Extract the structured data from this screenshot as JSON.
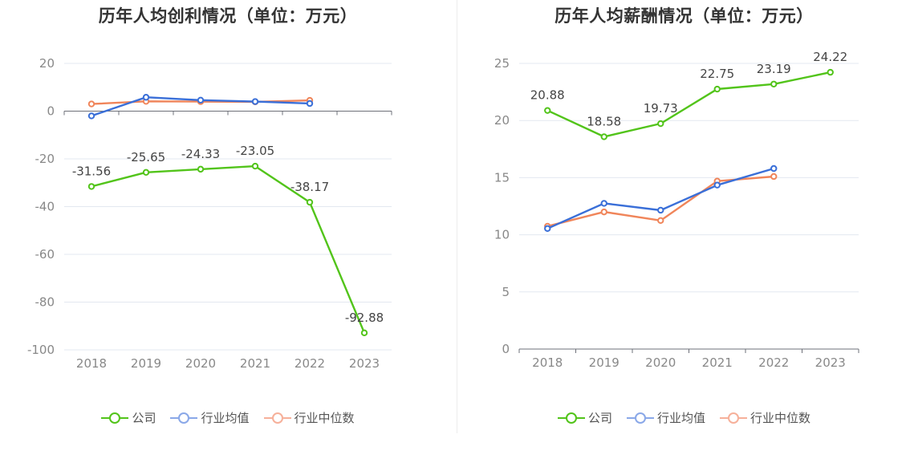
{
  "chart_data": [
    {
      "type": "line",
      "title": "历年人均创利情况（单位：万元）",
      "categories": [
        "2018",
        "2019",
        "2020",
        "2021",
        "2022",
        "2023"
      ],
      "ylim": [
        -100,
        20
      ],
      "yticks": [
        20,
        0,
        -20,
        -40,
        -60,
        -80,
        -100
      ],
      "grid": true,
      "legend_position": "bottom",
      "series": [
        {
          "name": "公司",
          "color": "#52c41a",
          "values": [
            -31.56,
            -25.65,
            -24.33,
            -23.05,
            -38.17,
            -92.88
          ],
          "show_labels": true
        },
        {
          "name": "行业均值",
          "color": "#3a6fd8",
          "values": [
            -2.0,
            5.8,
            4.6,
            4.0,
            3.2,
            null
          ],
          "show_labels": false
        },
        {
          "name": "行业中位数",
          "color": "#f0855a",
          "values": [
            3.0,
            4.1,
            4.0,
            3.9,
            4.5,
            null
          ],
          "show_labels": false
        }
      ],
      "labels": [
        "-31.56",
        "-25.65",
        "-24.33",
        "-23.05",
        "-38.17",
        "-92.88"
      ]
    },
    {
      "type": "line",
      "title": "历年人均薪酬情况（单位：万元）",
      "categories": [
        "2018",
        "2019",
        "2020",
        "2021",
        "2022",
        "2023"
      ],
      "ylim": [
        0,
        25
      ],
      "yticks": [
        25,
        20,
        15,
        10,
        5,
        0
      ],
      "grid": true,
      "legend_position": "bottom",
      "series": [
        {
          "name": "公司",
          "color": "#52c41a",
          "values": [
            20.88,
            18.58,
            19.73,
            22.75,
            23.19,
            24.22
          ],
          "show_labels": true
        },
        {
          "name": "行业均值",
          "color": "#3a6fd8",
          "values": [
            10.55,
            12.75,
            12.15,
            14.35,
            15.8,
            null
          ],
          "show_labels": false
        },
        {
          "name": "行业中位数",
          "color": "#f0855a",
          "values": [
            10.75,
            12.0,
            11.25,
            14.7,
            15.1,
            null
          ],
          "show_labels": false
        }
      ],
      "labels": [
        "20.88",
        "18.58",
        "19.73",
        "22.75",
        "23.19",
        "24.22"
      ]
    }
  ],
  "legend": {
    "items": [
      {
        "label": "公司",
        "color": "#52c41a",
        "light": "#52c41a"
      },
      {
        "label": "行业均值",
        "color": "#8aa8e8",
        "light": "#8aa8e8"
      },
      {
        "label": "行业中位数",
        "color": "#f6b09a",
        "light": "#f6b09a"
      }
    ]
  }
}
